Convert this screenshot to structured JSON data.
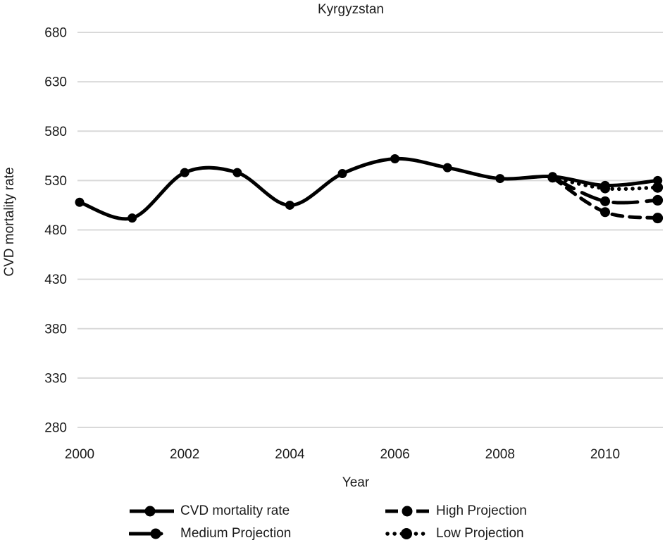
{
  "title": "Kyrgyzstan",
  "colors": {
    "series": "#000000",
    "grid": "#d9d9d9",
    "text": "#1a1a1a",
    "background": "#ffffff"
  },
  "chart_data": {
    "type": "line",
    "title": "Kyrgyzstan",
    "xlabel": "Year",
    "ylabel": "CVD mortality rate",
    "ylim": [
      280,
      680
    ],
    "xlim": [
      2000,
      2011
    ],
    "y_ticks": [
      680,
      630,
      580,
      530,
      480,
      430,
      380,
      330,
      280
    ],
    "x_ticks": [
      2000,
      2002,
      2004,
      2006,
      2008,
      2010
    ],
    "grid": "horizontal-only",
    "legend_position": "bottom",
    "series": [
      {
        "name": "CVD mortality rate",
        "style": "solid",
        "x": [
          2000,
          2001,
          2002,
          2003,
          2004,
          2005,
          2006,
          2007,
          2008,
          2009,
          2010,
          2011
        ],
        "values": [
          508,
          492,
          538,
          538,
          505,
          537,
          552,
          543,
          532,
          534,
          525,
          530
        ]
      },
      {
        "name": "High Projection",
        "style": "dashed",
        "x": [
          2009,
          2010,
          2011
        ],
        "values": [
          533,
          498,
          492
        ]
      },
      {
        "name": "Medium Projection",
        "style": "long-dash",
        "x": [
          2009,
          2010,
          2011
        ],
        "values": [
          533,
          509,
          510
        ]
      },
      {
        "name": "Low Projection",
        "style": "dotted",
        "x": [
          2009,
          2010,
          2011
        ],
        "values": [
          533,
          522,
          523
        ]
      }
    ]
  },
  "legend": {
    "items": [
      {
        "label": "CVD mortality rate",
        "series_style": "solid"
      },
      {
        "label": "High Projection",
        "series_style": "dashed"
      },
      {
        "label": "Medium Projection",
        "series_style": "long-dash"
      },
      {
        "label": "Low Projection",
        "series_style": "dotted"
      }
    ]
  }
}
